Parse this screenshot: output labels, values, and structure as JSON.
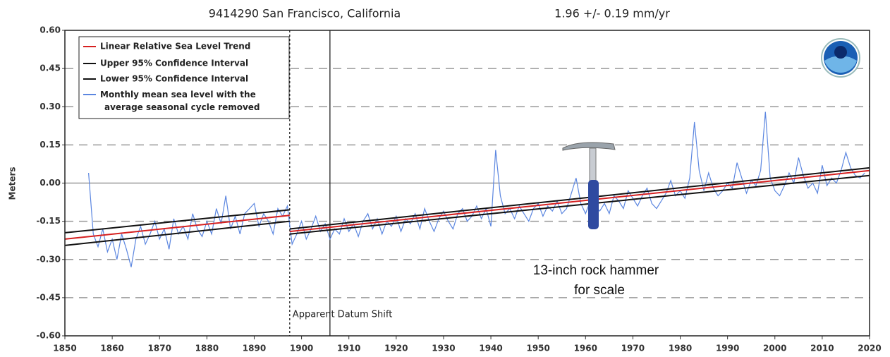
{
  "chart_data": {
    "type": "line",
    "title": "9414290 San Francisco, California",
    "subtitle": "1.96 +/-  0.19 mm/yr",
    "y_label": "Meters",
    "xlim": [
      1850,
      2020
    ],
    "xticks": [
      1850,
      1860,
      1870,
      1880,
      1890,
      1900,
      1910,
      1920,
      1930,
      1940,
      1950,
      1960,
      1970,
      1980,
      1990,
      2000,
      2010,
      2020
    ],
    "ylim": [
      -0.6,
      0.6
    ],
    "yticks": [
      {
        "value": 0.6,
        "label": "0.60"
      },
      {
        "value": 0.45,
        "label": "0.45"
      },
      {
        "value": 0.3,
        "label": "0.30"
      },
      {
        "value": 0.15,
        "label": "0.15"
      },
      {
        "value": 0,
        "label": "0.00"
      },
      {
        "value": -0.15,
        "label": "-0.15"
      },
      {
        "value": -0.3,
        "label": "-0.30"
      },
      {
        "value": -0.45,
        "label": "-0.45"
      },
      {
        "value": -0.6,
        "label": "-0.60"
      }
    ],
    "grid": true,
    "legend": "upper left",
    "vlines": [
      {
        "x": 1897.5,
        "style": "dotted"
      },
      {
        "x": 1906,
        "style": "solid"
      }
    ],
    "annotations": [
      "Apparent Datum Shift",
      "13-inch rock hammer",
      "for scale"
    ],
    "series": [
      {
        "name": "Linear Relative Sea Level Trend",
        "color": "#d62020",
        "x": [
          1850,
          1897.5,
          1897.5,
          1897.5,
          2020
        ],
        "values": [
          -0.22,
          -0.127,
          null,
          -0.19,
          0.049
        ]
      },
      {
        "name": "Upper 95% Confidence Interval",
        "color": "#111111",
        "x": [
          1850,
          1897.5,
          1897.5,
          1897.5,
          2020
        ],
        "values": [
          -0.195,
          -0.105,
          null,
          -0.18,
          0.06
        ]
      },
      {
        "name": "Lower 95% Confidence Interval",
        "color": "#111111",
        "x": [
          1850,
          1897.5,
          1897.5,
          1897.5,
          2020
        ],
        "values": [
          -0.245,
          -0.15,
          null,
          -0.2,
          0.03
        ]
      },
      {
        "name": "Monthly mean sea level with the average seasonal cycle removed",
        "color": "#5b86e0",
        "x": [
          1855,
          1856,
          1857,
          1858,
          1859,
          1860,
          1861,
          1862,
          1863,
          1864,
          1865,
          1866,
          1867,
          1868,
          1869,
          1870,
          1871,
          1872,
          1873,
          1874,
          1875,
          1876,
          1877,
          1878,
          1879,
          1880,
          1881,
          1882,
          1883,
          1884,
          1885,
          1886,
          1887,
          1888,
          1889,
          1890,
          1891,
          1892,
          1893,
          1894,
          1895,
          1896,
          1897,
          1898,
          1899,
          1900,
          1901,
          1902,
          1903,
          1904,
          1905,
          1906,
          1907,
          1908,
          1909,
          1910,
          1911,
          1912,
          1913,
          1914,
          1915,
          1916,
          1917,
          1918,
          1919,
          1920,
          1921,
          1922,
          1923,
          1924,
          1925,
          1926,
          1927,
          1928,
          1929,
          1930,
          1931,
          1932,
          1933,
          1934,
          1935,
          1936,
          1937,
          1938,
          1939,
          1940,
          1941,
          1942,
          1943,
          1944,
          1945,
          1946,
          1947,
          1948,
          1949,
          1950,
          1951,
          1952,
          1953,
          1954,
          1955,
          1956,
          1957,
          1958,
          1959,
          1960,
          1961,
          1962,
          1963,
          1964,
          1965,
          1966,
          1967,
          1968,
          1969,
          1970,
          1971,
          1972,
          1973,
          1974,
          1975,
          1976,
          1977,
          1978,
          1979,
          1980,
          1981,
          1982,
          1983,
          1984,
          1985,
          1986,
          1987,
          1988,
          1989,
          1990,
          1991,
          1992,
          1993,
          1994,
          1995,
          1996,
          1997,
          1998,
          1999,
          2000,
          2001,
          2002,
          2003,
          2004,
          2005,
          2006,
          2007,
          2008,
          2009,
          2010,
          2011,
          2012,
          2013,
          2014,
          2015,
          2016,
          2017,
          2018,
          2019
        ],
        "values": [
          0.04,
          -0.2,
          -0.25,
          -0.18,
          -0.27,
          -0.22,
          -0.3,
          -0.2,
          -0.26,
          -0.33,
          -0.22,
          -0.17,
          -0.24,
          -0.2,
          -0.15,
          -0.22,
          -0.18,
          -0.26,
          -0.14,
          -0.2,
          -0.17,
          -0.22,
          -0.12,
          -0.18,
          -0.21,
          -0.15,
          -0.2,
          -0.1,
          -0.16,
          -0.05,
          -0.18,
          -0.13,
          -0.2,
          -0.12,
          -0.1,
          -0.08,
          -0.17,
          -0.12,
          -0.15,
          -0.2,
          -0.1,
          -0.13,
          -0.09,
          -0.24,
          -0.2,
          -0.15,
          -0.22,
          -0.18,
          -0.13,
          -0.19,
          -0.16,
          -0.22,
          -0.18,
          -0.2,
          -0.14,
          -0.19,
          -0.16,
          -0.21,
          -0.15,
          -0.12,
          -0.18,
          -0.14,
          -0.2,
          -0.15,
          -0.17,
          -0.13,
          -0.19,
          -0.14,
          -0.16,
          -0.12,
          -0.18,
          -0.1,
          -0.15,
          -0.19,
          -0.14,
          -0.11,
          -0.15,
          -0.18,
          -0.12,
          -0.1,
          -0.15,
          -0.13,
          -0.09,
          -0.14,
          -0.1,
          -0.17,
          0.13,
          -0.05,
          -0.12,
          -0.1,
          -0.14,
          -0.09,
          -0.12,
          -0.15,
          -0.1,
          -0.08,
          -0.13,
          -0.09,
          -0.11,
          -0.07,
          -0.12,
          -0.1,
          -0.04,
          0.02,
          -0.08,
          -0.12,
          -0.07,
          -0.09,
          -0.11,
          -0.08,
          -0.12,
          -0.05,
          -0.07,
          -0.1,
          -0.03,
          -0.06,
          -0.09,
          -0.05,
          -0.02,
          -0.08,
          -0.1,
          -0.07,
          -0.04,
          0.01,
          -0.05,
          -0.03,
          -0.06,
          0.02,
          0.24,
          0.05,
          -0.03,
          0.04,
          -0.02,
          -0.05,
          -0.03,
          0,
          -0.02,
          0.08,
          0.02,
          -0.04,
          0.01,
          -0.01,
          0.05,
          0.28,
          0.02,
          -0.03,
          -0.05,
          -0.01,
          0.04,
          0,
          0.1,
          0.03,
          -0.02,
          0,
          -0.04,
          0.07,
          -0.01,
          0.02,
          0,
          0.05,
          0.12,
          0.06,
          0.03,
          0.02,
          0.04
        ]
      }
    ]
  }
}
